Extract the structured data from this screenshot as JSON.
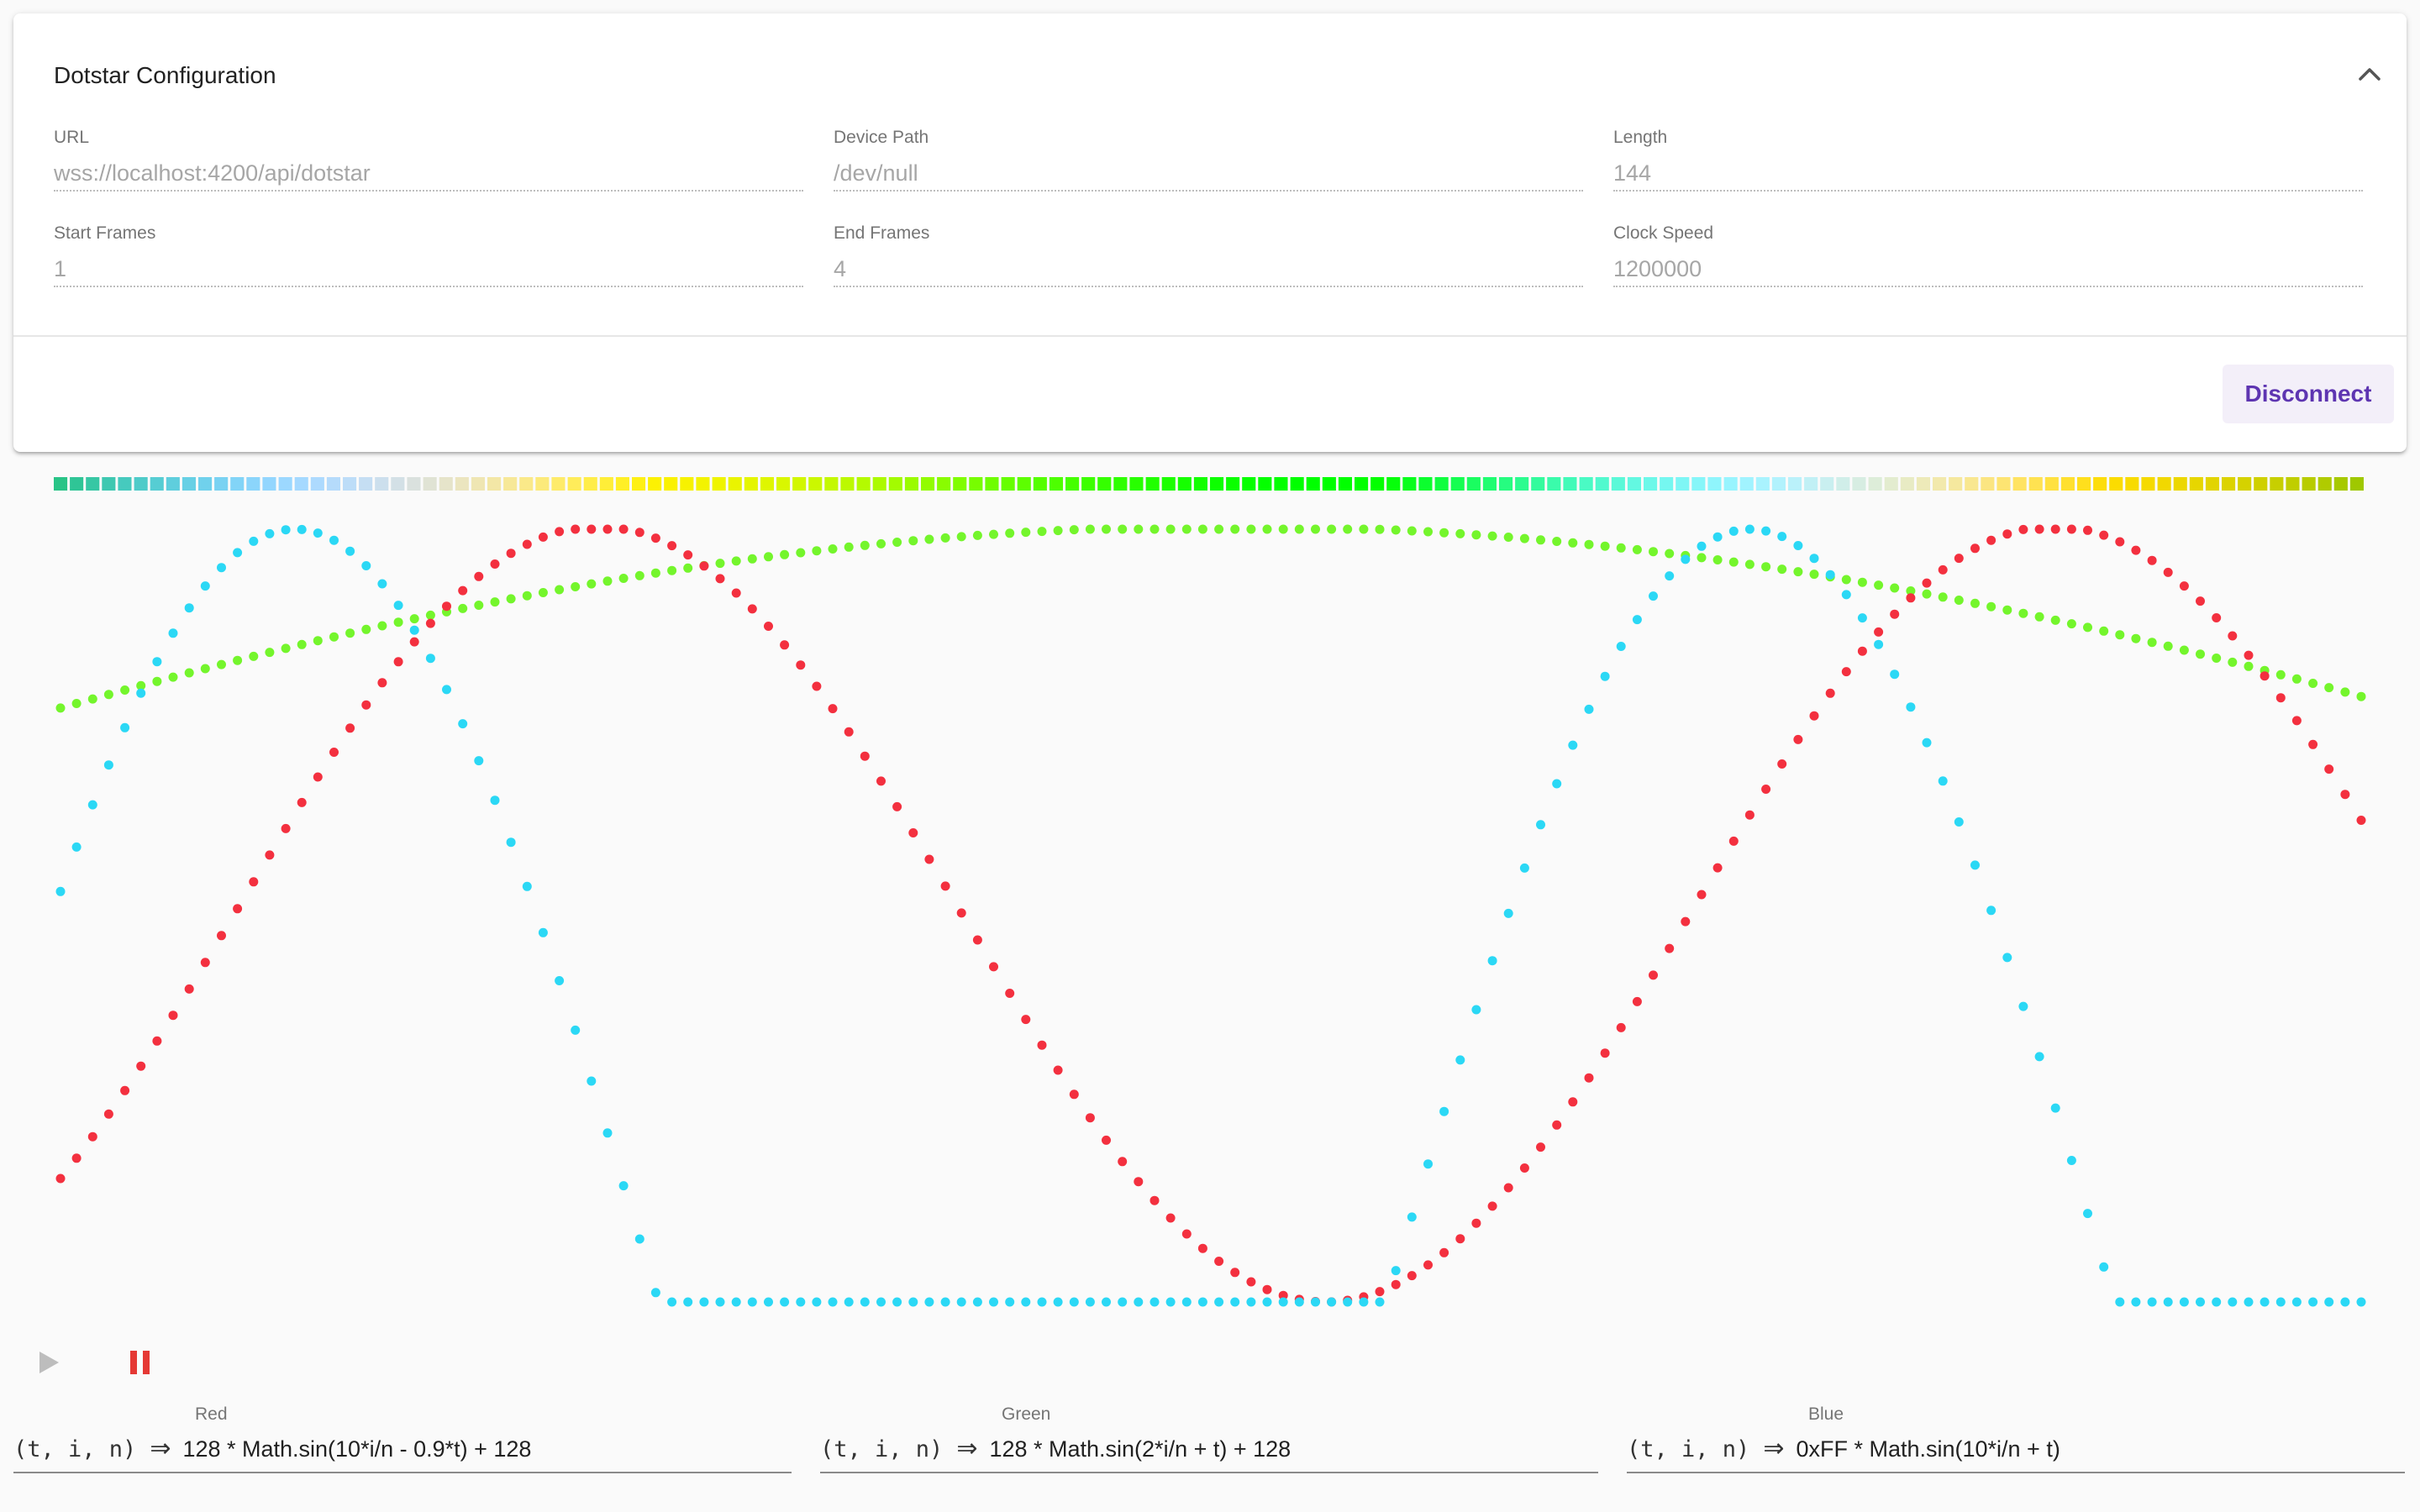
{
  "config": {
    "title": "Dotstar Configuration",
    "fields": [
      {
        "label": "URL",
        "value": "wss://localhost:4200/api/dotstar"
      },
      {
        "label": "Device Path",
        "value": "/dev/null"
      },
      {
        "label": "Length",
        "value": "144"
      },
      {
        "label": "Start Frames",
        "value": "1"
      },
      {
        "label": "End Frames",
        "value": "4"
      },
      {
        "label": "Clock Speed",
        "value": "1200000"
      }
    ],
    "disconnect_label": "Disconnect"
  },
  "icons": {
    "collapse": "chevron-up-icon",
    "play": "play-icon",
    "pause": "pause-icon"
  },
  "colors": {
    "red": "#f3303f",
    "green": "#74f52c",
    "blue": "#2bd8f5",
    "accent": "#5e35b1",
    "pause": "#e53935",
    "play_disabled": "#bdbdbd"
  },
  "formulas": {
    "signature": "(t, i, n)",
    "arrow": "⇒",
    "red": {
      "label": "Red",
      "expression": "128 * Math.sin(10*i/n - 0.9*t) + 128"
    },
    "green": {
      "label": "Green",
      "expression": "128 * Math.sin(2*i/n + t) + 128"
    },
    "blue": {
      "label": "Blue",
      "expression": "0xFF * Math.sin(10*i/n + t)"
    }
  },
  "chart_data": {
    "type": "scatter",
    "led_count": 144,
    "x": {
      "name": "i",
      "range": [
        0,
        143
      ]
    },
    "ylim": [
      0,
      255
    ],
    "series": [
      {
        "name": "Red",
        "color": "#f3303f",
        "amplitude": 128,
        "offset": 128,
        "freq": 10,
        "phase": -0.75
      },
      {
        "name": "Green",
        "color": "#74f52c",
        "amplitude": 128,
        "offset": 128,
        "freq": 2,
        "phase": 0.56
      },
      {
        "name": "Blue",
        "color": "#2bd8f5",
        "amplitude": 255,
        "offset": 0,
        "freq": 10,
        "phase": 0.56
      }
    ]
  }
}
